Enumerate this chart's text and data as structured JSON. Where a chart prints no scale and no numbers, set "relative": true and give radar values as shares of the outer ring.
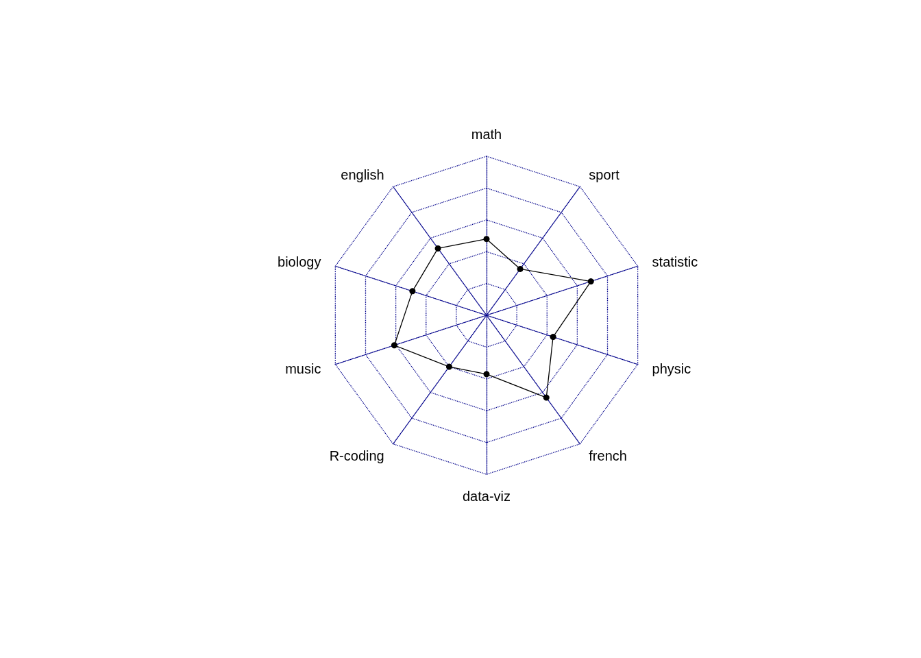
{
  "chart_data": {
    "type": "radar",
    "relative": true,
    "grid": true,
    "marker": "circle",
    "line_style": "solid",
    "categories": [
      "math",
      "sport",
      "statistic",
      "physic",
      "french",
      "data-viz",
      "R-coding",
      "music",
      "biology",
      "english"
    ],
    "series": [
      {
        "color": "#000000",
        "values": [
          0.48,
          0.36,
          0.69,
          0.44,
          0.64,
          0.37,
          0.4,
          0.61,
          0.49,
          0.52
        ]
      }
    ]
  }
}
